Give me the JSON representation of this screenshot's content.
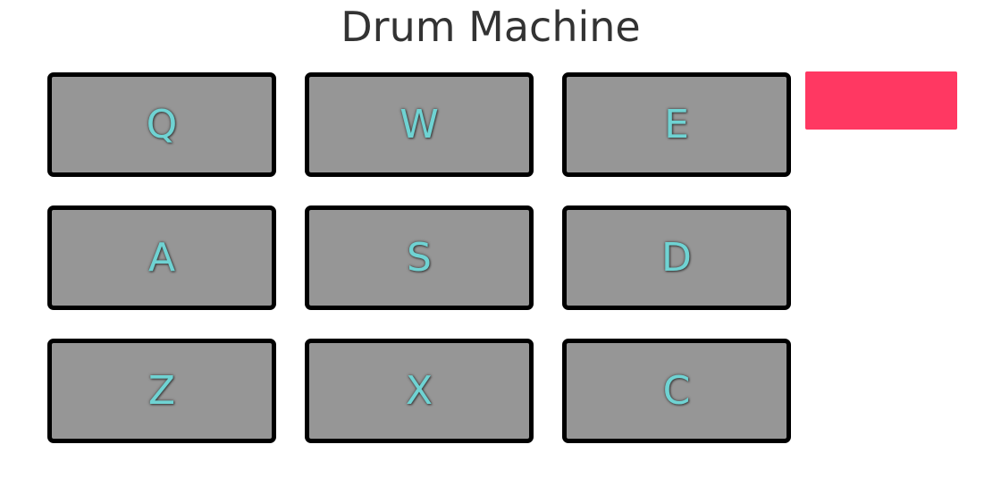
{
  "app": {
    "title": "Drum Machine"
  },
  "pads": [
    {
      "key": "Q"
    },
    {
      "key": "W"
    },
    {
      "key": "E"
    },
    {
      "key": "A"
    },
    {
      "key": "S"
    },
    {
      "key": "D"
    },
    {
      "key": "Z"
    },
    {
      "key": "X"
    },
    {
      "key": "C"
    }
  ],
  "display": {
    "text": ""
  },
  "colors": {
    "pad_background": "#969696",
    "pad_border": "#000000",
    "pad_label": "#6fd3d3",
    "display_background": "#ff3862",
    "title_text": "#333333"
  }
}
